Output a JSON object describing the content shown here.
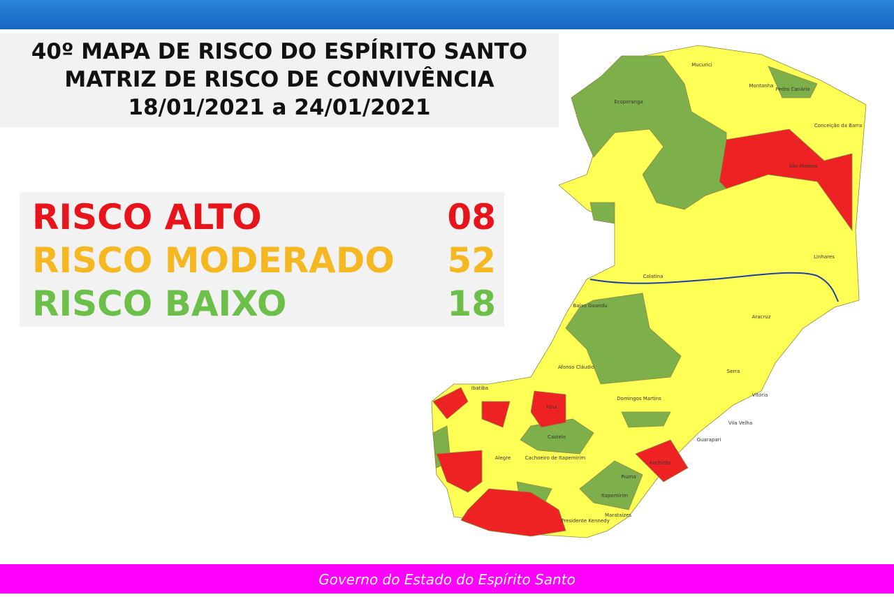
{
  "header": {
    "title_lines": [
      "40º MAPA DE RISCO DO ESPÍRITO SANTO",
      "MATRIZ DE RISCO DE CONVIVÊNCIA",
      "18/01/2021 a 24/01/2021"
    ]
  },
  "risk_table": {
    "rows": [
      [
        "RISCO ALTO",
        "08"
      ],
      [
        "RISCO MODERADO",
        "52"
      ],
      [
        "RISCO BAIXO",
        "18"
      ]
    ]
  },
  "map": {
    "labels": [
      "Mucurici",
      "Montanha",
      "Pedro Canário",
      "Ecoporanga",
      "Conceição da Barra",
      "São Mateus",
      "Linhares",
      "Aracruz",
      "Colatina",
      "Baixo Guandu",
      "Afonso Cláudio",
      "Domingos Martins",
      "Serra",
      "Vitória",
      "Vila Velha",
      "Guarapari",
      "Anchieta",
      "Piúma",
      "Itapemirim",
      "Marataízes",
      "Presidente Kennedy",
      "Cachoeiro de Itapemirim",
      "Castelo",
      "Alegre",
      "Iúna",
      "Ibatiba"
    ]
  },
  "footer": {
    "text": "Governo do Estado do Espírito Santo"
  }
}
